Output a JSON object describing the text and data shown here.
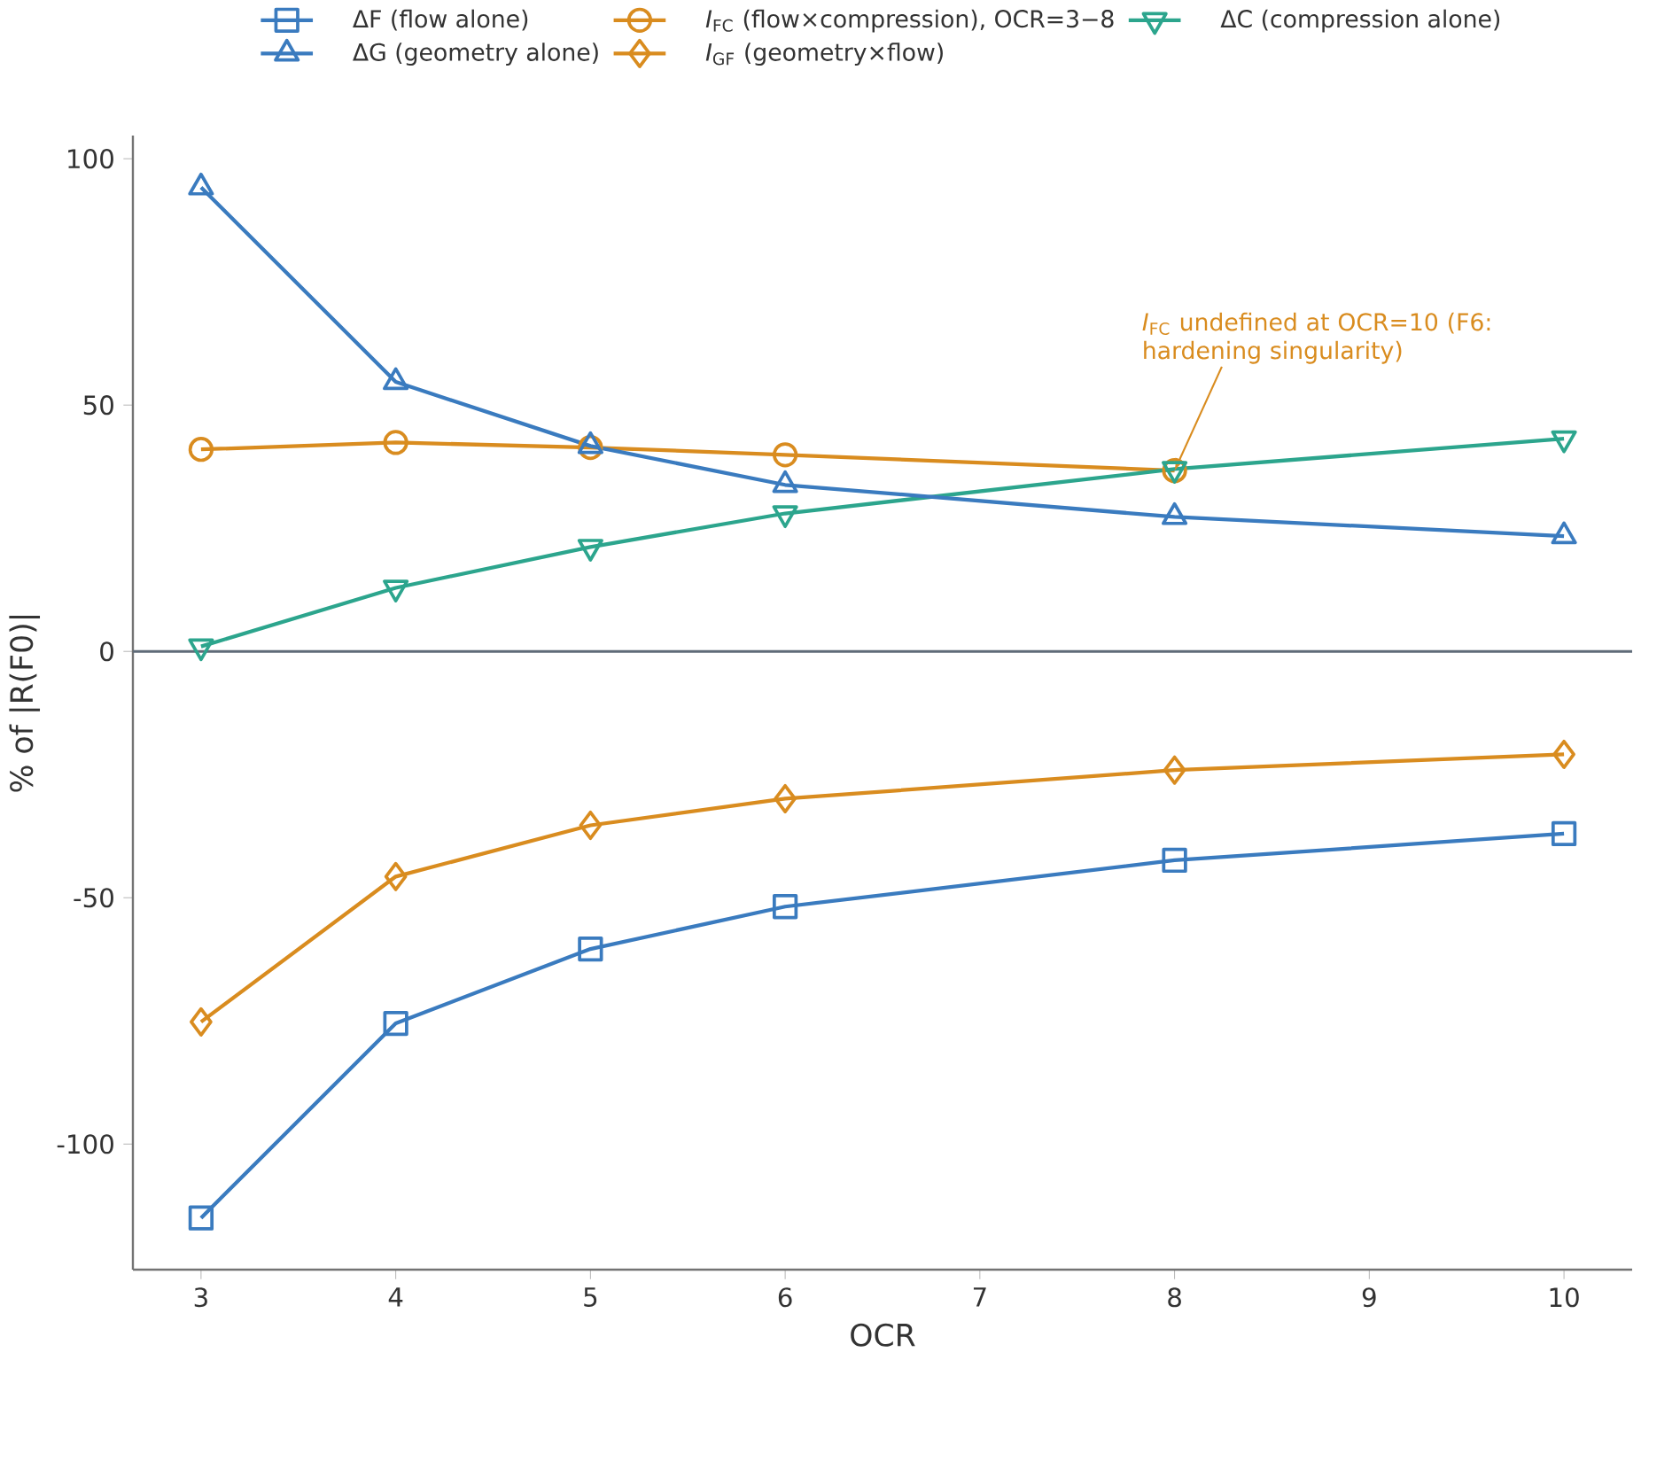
{
  "chart_data": {
    "type": "line",
    "xlabel": "OCR",
    "ylabel": "% of |R(F0)|",
    "x": [
      3,
      4,
      5,
      6,
      8,
      10
    ],
    "series": [
      {
        "name": "ΔF (flow alone)",
        "color": "#3a7bbf",
        "marker": "square",
        "values": [
          -115,
          -75.5,
          -60.4,
          -51.8,
          -42.4,
          -37
        ]
      },
      {
        "name": "*I*$_{FC}$ (flow×compression), OCR=3−8",
        "color": "#d98c1f",
        "marker": "circle",
        "x": [
          3,
          4,
          5,
          6,
          8
        ],
        "values": [
          41,
          42.4,
          41.4,
          39.9,
          36.7
        ]
      },
      {
        "name": "ΔC (compression alone)",
        "color": "#2ca58d",
        "marker": "triangle_down",
        "values": [
          1,
          12.9,
          21.2,
          28,
          37,
          43.2
        ]
      },
      {
        "name": "ΔG (geometry alone)",
        "color": "#3a7bbf",
        "marker": "triangle",
        "values": [
          94.2,
          54.7,
          41.7,
          33.8,
          27.3,
          23.4
        ]
      },
      {
        "name": "*I*$_{GF}$ (geometry×flow)",
        "color": "#d98c1f",
        "marker": "diamond",
        "values": [
          -75.2,
          -45.7,
          -35.3,
          -29.9,
          -24.1,
          -20.9
        ]
      }
    ],
    "xlim": [
      2.65,
      10.35
    ],
    "ylim": [
      -125.5,
      104.7
    ],
    "xticks": [
      3,
      4,
      5,
      6,
      7,
      8,
      9,
      10
    ],
    "yticks": [
      -100,
      -50,
      0,
      50,
      100
    ],
    "ref_lines": [
      {
        "axis": "y",
        "value": 0,
        "color": "#5f6b78"
      }
    ],
    "annotations": [
      {
        "text": "*I*$_{FC}$ undefined at OCR=10 (F6: hardening singularity)",
        "x": 8,
        "y": 36.7
      }
    ],
    "legend": "top",
    "line_style": "solid"
  }
}
